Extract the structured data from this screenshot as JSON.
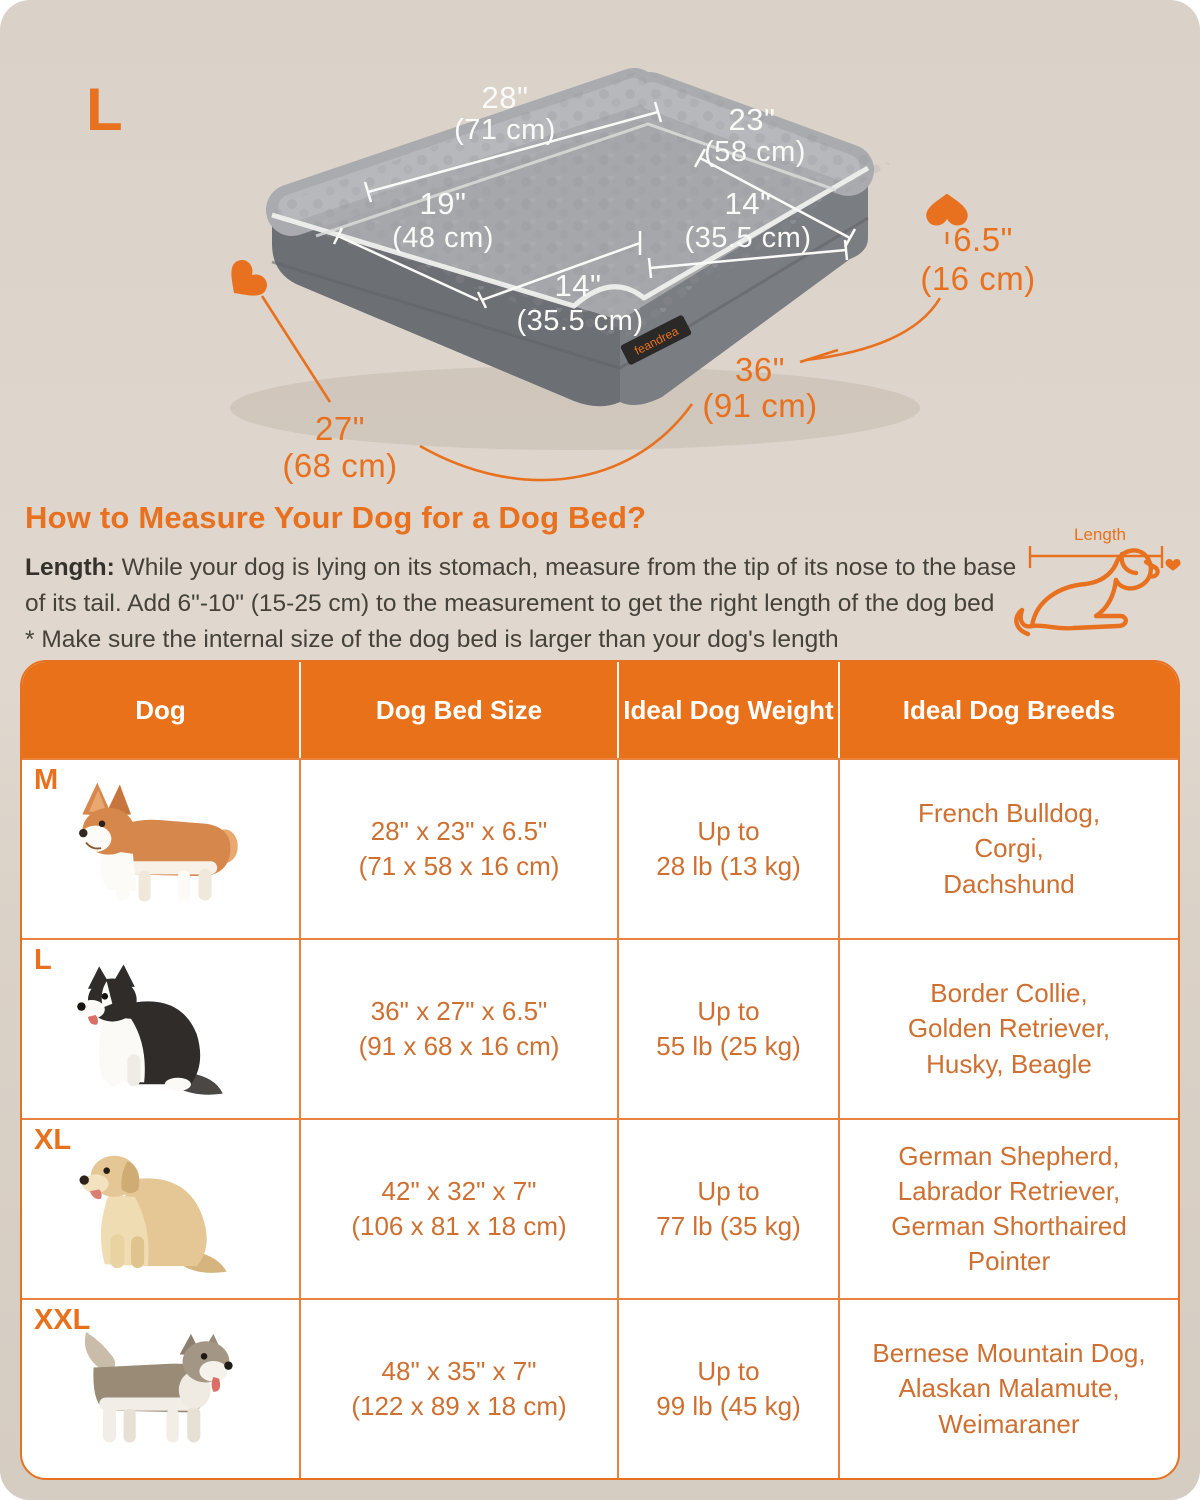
{
  "badge": "L",
  "colors": {
    "accent": "#E8711F",
    "table_header_bg": "#E8711A",
    "cell_text": "#CE7031",
    "body_text": "#45423C",
    "background": "#DBD2C8"
  },
  "bed": {
    "brand": "feandrea",
    "labels": {
      "back_width_in": "28\"",
      "back_width_cm": "(71 cm)",
      "right_depth_in": "23\"",
      "right_depth_cm": "(58 cm)",
      "inner_left_in": "19\"",
      "inner_left_cm": "(48 cm)",
      "inner_front_in": "14\"",
      "inner_front_cm": "(35.5 cm)",
      "inner_right_in": "14\"",
      "inner_right_cm": "(35.5 cm)",
      "height_in": "6.5\"",
      "height_cm": "(16 cm)",
      "base_depth_in": "27\"",
      "base_depth_cm": "(68 cm)",
      "base_width_in": "36\"",
      "base_width_cm": "(91 cm)"
    }
  },
  "how_to": {
    "heading": "How to Measure Your Dog for a Dog Bed?",
    "length_label": "Length:",
    "line1": "While your dog is lying on its stomach, measure from the tip of its nose to the base",
    "line2": "of its tail. Add 6\"-10\" (15-25 cm) to the measurement to get the right length of the dog bed",
    "note": "* Make sure the internal size of the dog bed is larger than your dog's length",
    "diagram_label": "Length"
  },
  "table": {
    "columns": [
      "Dog",
      "Dog Bed Size",
      "Ideal Dog Weight",
      "Ideal Dog Breeds"
    ],
    "rows": [
      {
        "size_label": "M",
        "dog": "corgi",
        "bed_size": "28\" x 23\" x 6.5\"\n(71 x 58 x 16 cm)",
        "weight": "Up to\n28 lb (13 kg)",
        "breeds": "French Bulldog,\nCorgi,\nDachshund"
      },
      {
        "size_label": "L",
        "dog": "border-collie",
        "bed_size": "36\" x 27\" x 6.5\"\n(91 x 68 x 16 cm)",
        "weight": "Up to\n55 lb (25 kg)",
        "breeds": "Border Collie,\nGolden Retriever,\nHusky, Beagle"
      },
      {
        "size_label": "XL",
        "dog": "labrador",
        "bed_size": "42\" x 32\" x 7\"\n(106 x 81 x 18 cm)",
        "weight": "Up to\n77 lb (35 kg)",
        "breeds": "German Shepherd,\nLabrador Retriever,\nGerman Shorthaired\nPointer"
      },
      {
        "size_label": "XXL",
        "dog": "malamute",
        "bed_size": "48\" x 35\" x 7\"\n(122 x 89 x 18 cm)",
        "weight": "Up to\n99 lb (45 kg)",
        "breeds": "Bernese Mountain Dog,\nAlaskan Malamute,\nWeimaraner"
      }
    ]
  }
}
